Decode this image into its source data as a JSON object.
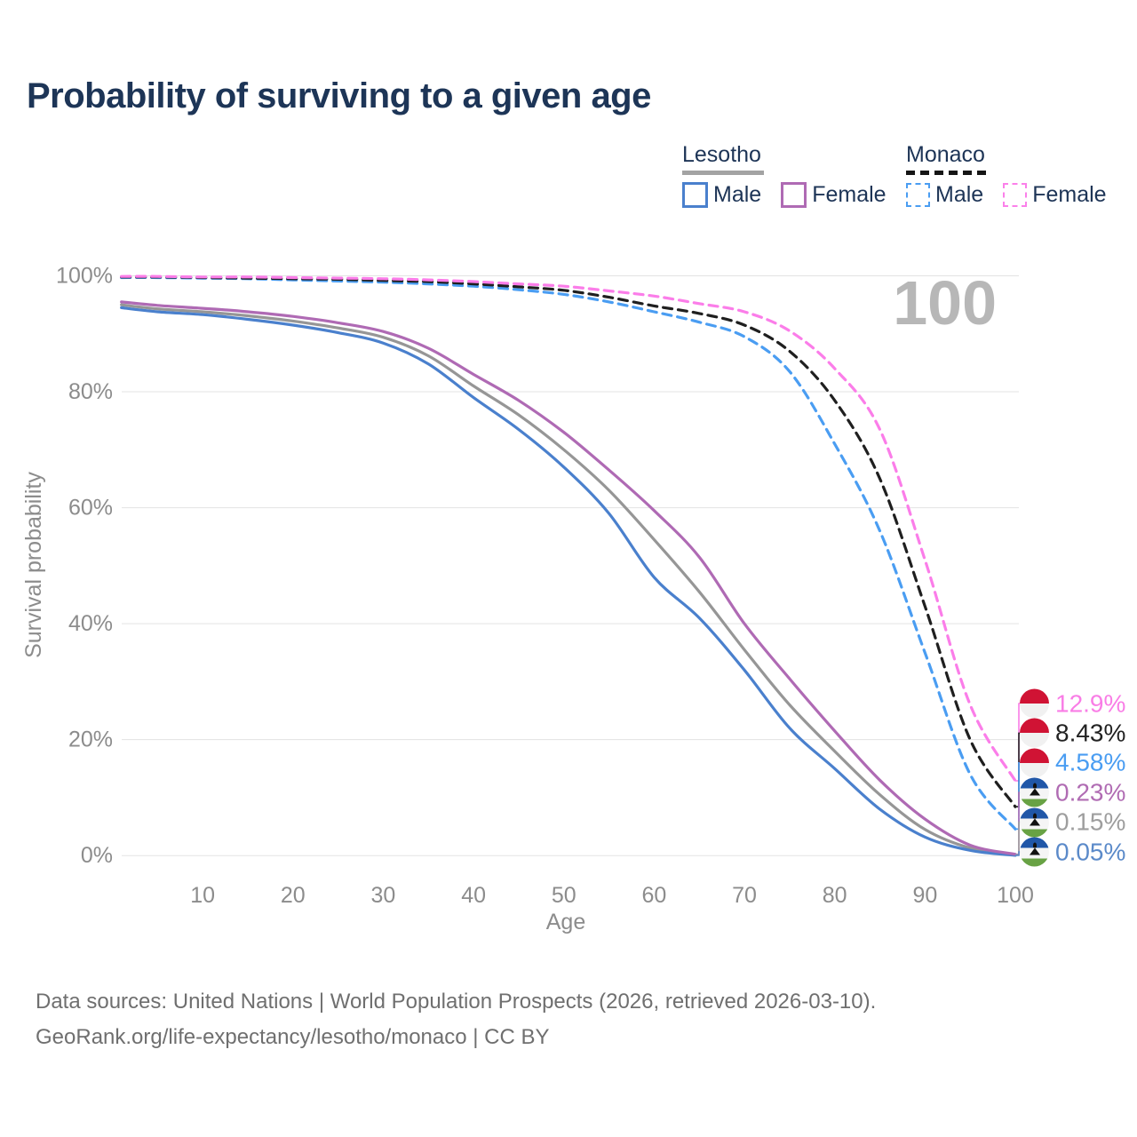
{
  "title": "Probability of surviving to a given age",
  "legend": {
    "groups": [
      {
        "name": "Lesotho",
        "line_style": "solid",
        "underline_color": "#a3a3a3",
        "items": [
          {
            "label": "Male",
            "color": "#4a80cd",
            "dashed": false
          },
          {
            "label": "Female",
            "color": "#af6ab4",
            "dashed": false
          }
        ]
      },
      {
        "name": "Monaco",
        "line_style": "dashed",
        "underline_color": "#151515",
        "items": [
          {
            "label": "Male",
            "color": "#4a9df2",
            "dashed": true
          },
          {
            "label": "Female",
            "color": "#fb80ea",
            "dashed": true
          }
        ]
      }
    ]
  },
  "chart_data": {
    "type": "line",
    "title": "Probability of surviving to a given age",
    "xlabel": "Age",
    "ylabel": "Survival probability",
    "xlim": [
      0,
      100
    ],
    "ylim": [
      0,
      100
    ],
    "grid": true,
    "x_ticks": [
      10,
      20,
      30,
      40,
      50,
      60,
      70,
      80,
      90,
      100
    ],
    "y_ticks": [
      0,
      20,
      40,
      60,
      80,
      100
    ],
    "y_tick_suffix": "%",
    "watermark": "100",
    "ages": [
      1,
      5,
      10,
      15,
      20,
      25,
      30,
      35,
      40,
      45,
      50,
      55,
      60,
      65,
      70,
      75,
      80,
      85,
      90,
      95,
      100
    ],
    "series": [
      {
        "name": "Lesotho",
        "country": "Lesotho",
        "sex": "Both sexes",
        "color": "#969696",
        "dashed": false,
        "values": [
          95.0,
          94.3,
          93.8,
          93.1,
          92.2,
          91.0,
          89.4,
          86.2,
          81.0,
          76.0,
          70.0,
          63.0,
          54.5,
          45.5,
          35.5,
          26.0,
          18.0,
          10.5,
          4.5,
          1.3,
          0.15
        ]
      },
      {
        "name": "Lesotho Male",
        "country": "Lesotho",
        "sex": "Male",
        "color": "#4a80cd",
        "dashed": false,
        "values": [
          94.5,
          93.8,
          93.3,
          92.5,
          91.5,
          90.2,
          88.4,
          84.8,
          79.0,
          73.5,
          67.0,
          59.0,
          48.0,
          41.0,
          32.0,
          22.0,
          15.0,
          8.0,
          3.2,
          0.9,
          0.05
        ]
      },
      {
        "name": "Lesotho Female",
        "country": "Lesotho",
        "sex": "Female",
        "color": "#af6ab4",
        "dashed": false,
        "values": [
          95.5,
          94.9,
          94.4,
          93.8,
          93.0,
          91.9,
          90.4,
          87.5,
          83.0,
          78.5,
          73.0,
          66.5,
          59.5,
          51.5,
          40.0,
          30.5,
          21.5,
          13.0,
          6.3,
          1.8,
          0.23
        ]
      },
      {
        "name": "Monaco Male",
        "country": "Monaco",
        "sex": "Male",
        "color": "#4a9df2",
        "dashed": true,
        "values": [
          99.7,
          99.7,
          99.6,
          99.5,
          99.3,
          99.1,
          98.9,
          98.6,
          98.2,
          97.6,
          96.8,
          95.5,
          93.8,
          92.0,
          89.5,
          83.5,
          71.0,
          56.0,
          35.0,
          14.0,
          4.58
        ]
      },
      {
        "name": "Monaco",
        "country": "Monaco",
        "sex": "Both sexes",
        "color": "#1f1f1f",
        "dashed": true,
        "values": [
          99.8,
          99.8,
          99.7,
          99.6,
          99.5,
          99.4,
          99.2,
          99.0,
          98.6,
          98.1,
          97.5,
          96.3,
          94.8,
          93.5,
          91.5,
          87.0,
          78.5,
          65.0,
          43.0,
          20.0,
          8.43
        ]
      },
      {
        "name": "Monaco Female",
        "country": "Monaco",
        "sex": "Female",
        "color": "#fb7de9",
        "dashed": true,
        "values": [
          99.9,
          99.9,
          99.8,
          99.8,
          99.7,
          99.6,
          99.5,
          99.3,
          99.0,
          98.6,
          98.2,
          97.4,
          96.5,
          95.2,
          93.8,
          90.5,
          84.0,
          73.5,
          51.0,
          26.0,
          12.9
        ]
      }
    ],
    "end_labels": [
      {
        "series": "Monaco Female",
        "text": "12.9%",
        "color": "#f97de6",
        "flag": "monaco"
      },
      {
        "series": "Monaco",
        "text": "8.43%",
        "color": "#222222",
        "flag": "monaco"
      },
      {
        "series": "Monaco Male",
        "text": "4.58%",
        "color": "#4a9df2",
        "flag": "monaco"
      },
      {
        "series": "Lesotho Female",
        "text": "0.23%",
        "color": "#b06cb3",
        "flag": "lesotho"
      },
      {
        "series": "Lesotho",
        "text": "0.15%",
        "color": "#9e9e9e",
        "flag": "lesotho"
      },
      {
        "series": "Lesotho Male",
        "text": "0.05%",
        "color": "#5b8ac9",
        "flag": "lesotho"
      }
    ]
  },
  "footer": {
    "line1": "Data sources: United Nations | World Population Prospects (2026, retrieved 2026-03-10).",
    "line2": "GeoRank.org/life-expectancy/lesotho/monaco | CC BY"
  },
  "colors": {
    "title_text": "#1d3557",
    "axis_text": "#8c8c8c",
    "gridline": "#e3e3e3",
    "watermark": "#b7b7b7",
    "footer_text": "#6f6f6f"
  }
}
